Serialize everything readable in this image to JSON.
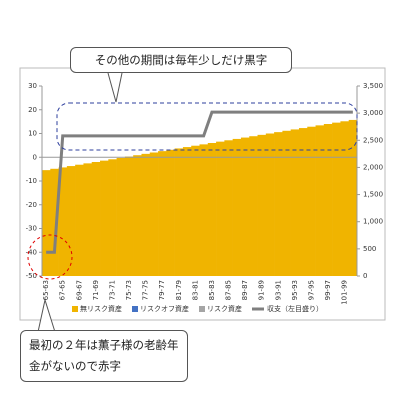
{
  "chart_data": {
    "type": "bar_line",
    "annotations": [
      "その他の期間は毎年少しだけ黒字",
      "最初の２年は薫子様の老齢年金がないので赤字"
    ],
    "categories": [
      "65-63",
      null,
      "67-65",
      null,
      "69-67",
      null,
      "71-69",
      null,
      "73-71",
      null,
      "75-73",
      null,
      "77-75",
      null,
      "79-77",
      null,
      "81-79",
      null,
      "83-81",
      null,
      "85-83",
      null,
      "87-85",
      null,
      "89-87",
      null,
      "91-89",
      null,
      "93-91",
      null,
      "95-93",
      null,
      "97-95",
      null,
      "99-97",
      null,
      "101-99",
      null
    ],
    "series": [
      {
        "name": "無リスク資産",
        "color": "#f0b400",
        "axis": "y2",
        "kind": "bar",
        "values": [
          1950,
          1975,
          2000,
          2025,
          2050,
          2075,
          2100,
          2125,
          2150,
          2175,
          2200,
          2225,
          2250,
          2275,
          2300,
          2325,
          2350,
          2375,
          2400,
          2425,
          2450,
          2475,
          2500,
          2525,
          2550,
          2575,
          2600,
          2625,
          2650,
          2675,
          2700,
          2725,
          2750,
          2775,
          2800,
          2825,
          2850,
          2875
        ]
      },
      {
        "name": "リスクオフ資産",
        "color": "#4472c4",
        "axis": "y2",
        "kind": "bar",
        "values": [
          0,
          0,
          0,
          0,
          0,
          0,
          0,
          0,
          0,
          0,
          0,
          0,
          0,
          0,
          0,
          0,
          0,
          0,
          0,
          0,
          0,
          0,
          0,
          0,
          0,
          0,
          0,
          0,
          0,
          0,
          0,
          0,
          0,
          0,
          0,
          0,
          0,
          0
        ]
      },
      {
        "name": "リスク資産",
        "color": "#a5a5a5",
        "axis": "y2",
        "kind": "bar",
        "values": [
          0,
          0,
          0,
          0,
          0,
          0,
          0,
          0,
          0,
          0,
          0,
          0,
          0,
          0,
          0,
          0,
          0,
          0,
          0,
          0,
          0,
          0,
          0,
          0,
          0,
          0,
          0,
          0,
          0,
          0,
          0,
          0,
          0,
          0,
          0,
          0,
          0,
          0
        ]
      },
      {
        "name": "収支（左目盛り）",
        "color": "#7f7f7f",
        "kind": "line",
        "values": [
          -40,
          -40,
          9,
          9,
          9,
          9,
          9,
          9,
          9,
          9,
          9,
          9,
          9,
          9,
          9,
          9,
          9,
          9,
          9,
          9,
          19,
          19,
          19,
          19,
          19,
          19,
          19,
          19,
          19,
          19,
          19,
          19,
          19,
          19,
          19,
          19,
          19,
          19
        ]
      }
    ],
    "ylim": [
      -50,
      30
    ],
    "yticks": [
      30,
      20,
      10,
      0,
      -10,
      -20,
      -30,
      -40,
      -50
    ],
    "y2lim": [
      0,
      3500
    ],
    "y2ticks": [
      {
        "value": 3500,
        "label": "3,500"
      },
      {
        "value": 3000,
        "label": "3,000"
      },
      {
        "value": 2500,
        "label": "2,500"
      },
      {
        "value": 2000,
        "label": "2,000"
      },
      {
        "value": 1500,
        "label": "1,500"
      },
      {
        "value": 1000,
        "label": "1,000"
      },
      500,
      0
    ],
    "grid": false
  }
}
